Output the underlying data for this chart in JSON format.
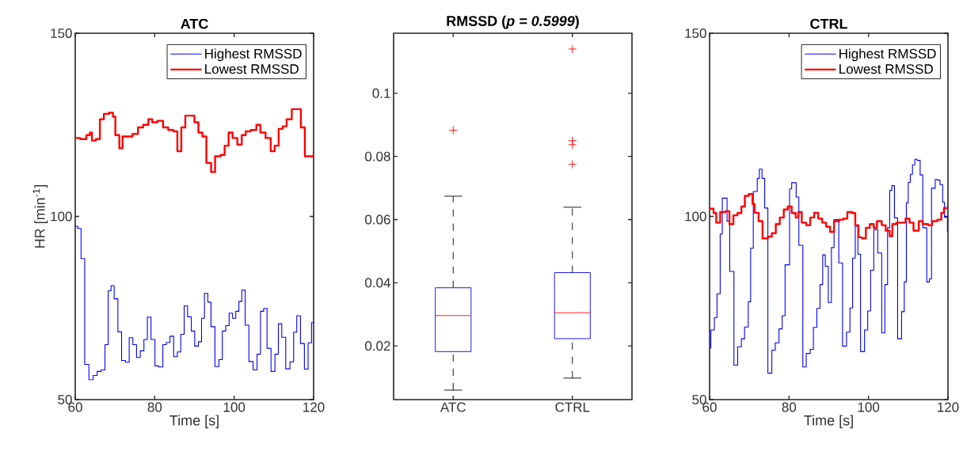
{
  "chart_data": [
    {
      "type": "step",
      "title": "ATC",
      "xlabel": "Time [s]",
      "ylabel": "HR [min$^{-1}$]",
      "xlim": [
        60,
        120
      ],
      "ylim": [
        50,
        150
      ],
      "xticks": [
        60,
        80,
        100,
        120
      ],
      "yticks": [
        50,
        100,
        150
      ],
      "legend": "top right",
      "series": [
        {
          "name": "Highest RMSSD",
          "color": "#0000ff",
          "x": [
            60,
            60.66,
            61.46,
            62.38,
            63.44,
            64.5,
            65.5,
            66.49,
            67.48,
            68.28,
            69.01,
            69.8,
            70.73,
            71.66,
            72.65,
            73.58,
            74.5,
            75.43,
            76.36,
            77.29,
            78.15,
            79.07,
            80.07,
            80.99,
            82.05,
            82.92,
            83.84,
            84.77,
            85.7,
            86.56,
            87.42,
            88.28,
            89.21,
            90.07,
            90.99,
            91.79,
            92.52,
            93.38,
            94.17,
            95.17,
            96.16,
            97.02,
            97.88,
            98.74,
            99.6,
            100.4,
            101.19,
            101.92,
            102.78,
            103.71,
            104.77,
            105.76,
            106.62,
            107.42,
            108.28,
            109.28,
            110.27,
            111.13,
            111.99,
            112.98,
            114.04,
            114.97,
            115.76,
            116.69,
            117.68,
            118.61,
            119.47,
            120
          ],
          "values": [
            97.3,
            96.7,
            88.5,
            59.6,
            55.4,
            56.6,
            57.7,
            58.1,
            65.0,
            79.7,
            81.1,
            77.5,
            68.5,
            60.7,
            60.2,
            66.9,
            65.0,
            61.5,
            63.3,
            66.4,
            72.5,
            66.4,
            59.2,
            58.9,
            65.0,
            65.6,
            67.3,
            61.7,
            63.0,
            67.8,
            75.6,
            72.6,
            68.7,
            64.6,
            65.8,
            72.2,
            79.0,
            76.6,
            69.9,
            59.0,
            60.9,
            68.7,
            70.2,
            73.6,
            72.2,
            74.1,
            76.8,
            79.9,
            70.3,
            60.4,
            58.1,
            62.4,
            74.1,
            74.9,
            64.0,
            57.7,
            62.4,
            70.7,
            67.0,
            58.4,
            60.3,
            68.4,
            72.9,
            65.3,
            58.3,
            65.5,
            71.0,
            71.0
          ]
        },
        {
          "name": "Lowest RMSSD",
          "color": "#ff0000",
          "x": [
            60,
            61.2,
            62.8,
            63.7,
            64.2,
            65.2,
            66.2,
            67.2,
            68.5,
            69.5,
            70.1,
            71.1,
            71.9,
            73.1,
            74.4,
            75.8,
            77.1,
            78.4,
            79.4,
            80.7,
            82.1,
            83.4,
            84.7,
            85.7,
            86.7,
            87.7,
            89.0,
            90.0,
            91.0,
            92.0,
            93.0,
            94.2,
            95.2,
            96.6,
            97.6,
            98.6,
            99.6,
            100.8,
            101.9,
            102.9,
            104.2,
            105.6,
            106.6,
            107.9,
            109.2,
            110.2,
            111.2,
            112.2,
            113.2,
            114.5,
            115.8,
            116.8,
            117.8,
            119.1,
            120
          ],
          "values": [
            121.4,
            121.1,
            122.2,
            122.9,
            120.7,
            121.1,
            126.5,
            128.0,
            128.3,
            127.2,
            122.2,
            118.6,
            121.8,
            121.8,
            122.5,
            124.3,
            125.0,
            126.5,
            125.7,
            126.1,
            124.3,
            123.6,
            123.2,
            117.8,
            124.3,
            127.5,
            127.5,
            125.7,
            122.9,
            121.8,
            114.6,
            112.1,
            116.4,
            116.8,
            119.3,
            122.9,
            121.4,
            119.6,
            122.2,
            123.2,
            123.6,
            125.0,
            122.9,
            121.4,
            117.8,
            119.3,
            123.9,
            124.6,
            126.5,
            129.3,
            129.3,
            124.3,
            116.4,
            116.4,
            117.5
          ]
        }
      ]
    },
    {
      "type": "box",
      "title": "RMSSD (*p = 0.5999*)",
      "categories": [
        "ATC",
        "CTRL"
      ],
      "ylim": [
        0.003,
        0.119
      ],
      "yticks": [
        0.02,
        0.04,
        0.06,
        0.08,
        0.1
      ],
      "boxes": [
        {
          "low": 0.006,
          "q1": 0.0182,
          "median": 0.0296,
          "q3": 0.0384,
          "high": 0.0674,
          "outliers": [
            0.0883
          ]
        },
        {
          "low": 0.0098,
          "q1": 0.0223,
          "median": 0.0305,
          "q3": 0.0432,
          "high": 0.0639,
          "outliers": [
            0.114,
            0.085,
            0.0837,
            0.0775
          ]
        }
      ]
    },
    {
      "type": "step",
      "title": "CTRL",
      "xlabel": "Time [s]",
      "xlim": [
        60,
        120
      ],
      "ylim": [
        50,
        150
      ],
      "xticks": [
        60,
        80,
        100,
        120
      ],
      "yticks": [
        50,
        100,
        150
      ],
      "legend": "top right",
      "series": [
        {
          "name": "Highest RMSSD",
          "color": "#0000ff",
          "x": [
            60,
            60.33,
            61.2,
            61.87,
            62.67,
            63.2,
            64.4,
            65.07,
            66.13,
            67.07,
            68,
            68.8,
            69.73,
            70.33,
            71,
            72,
            72.53,
            73.2,
            73.87,
            74.67,
            75.67,
            76.53,
            77.47,
            78.27,
            79,
            80.13,
            80.67,
            81.8,
            82.47,
            83.47,
            84.33,
            85.33,
            86.13,
            87,
            87.8,
            88.47,
            89.13,
            89.87,
            90.67,
            91.33,
            92.53,
            93.47,
            94.47,
            95.33,
            96,
            96.67,
            97.33,
            98,
            99,
            99.8,
            100.53,
            101.33,
            102.33,
            103.33,
            104.13,
            104.8,
            105.33,
            105.87,
            106.53,
            107.33,
            108.33,
            109,
            109.53,
            110,
            110.53,
            111.07,
            111.67,
            112.2,
            113,
            113.67,
            114.67,
            115.33,
            115.87,
            116.8,
            117.33,
            118,
            118.67,
            119.13,
            119.87,
            120
          ],
          "values": [
            64.1,
            69.0,
            72.4,
            78.9,
            95.2,
            105.0,
            98.7,
            85.0,
            59.4,
            64.4,
            66.6,
            69.8,
            76.7,
            91.3,
            106.8,
            110.4,
            112.9,
            110.4,
            102.3,
            57.2,
            63.5,
            65.5,
            69.3,
            72.9,
            86.8,
            107.5,
            109.2,
            105.3,
            92.1,
            58.9,
            62.6,
            63.7,
            69.7,
            74.9,
            81.4,
            89.5,
            86.4,
            76.5,
            91.5,
            99.1,
            87.3,
            64.6,
            68.4,
            75.0,
            88.6,
            97.3,
            89.7,
            63.1,
            69.0,
            74.2,
            85.3,
            96.4,
            90.0,
            68.2,
            81.4,
            96.9,
            107.1,
            108.4,
            99.6,
            66.6,
            74.0,
            82.1,
            103.7,
            109.3,
            111.5,
            114.1,
            115.6,
            115.3,
            111.3,
            96.9,
            82.1,
            83.0,
            107.7,
            110.1,
            109.9,
            108.7,
            103.9,
            99.8,
            96.0,
            96.0
          ]
        },
        {
          "name": "Lowest RMSSD",
          "color": "#ff0000",
          "x": [
            60,
            61,
            61.67,
            62.67,
            64,
            65,
            66,
            67,
            68,
            68.87,
            69.87,
            70.8,
            71.33,
            72.33,
            73.33,
            74.67,
            75.67,
            76.67,
            77.67,
            78.67,
            79.67,
            80.67,
            81.67,
            82.33,
            83.2,
            84.33,
            85.33,
            86.33,
            87.33,
            88.33,
            89.33,
            90.33,
            91.33,
            92.67,
            93.67,
            94.67,
            95.87,
            96.67,
            97.47,
            98.33,
            99.33,
            100.33,
            101.33,
            102.13,
            103.33,
            104.33,
            105.33,
            106,
            107,
            108.33,
            109.33,
            110.33,
            111.33,
            112.67,
            113.67,
            115,
            116,
            117.33,
            118.33,
            119,
            120
          ],
          "values": [
            102.1,
            100.9,
            98.3,
            101.2,
            101.4,
            97.9,
            100.3,
            100.9,
            102.7,
            105.6,
            106.1,
            103.4,
            101.0,
            98.7,
            94.0,
            94.5,
            95.4,
            97.9,
            99.7,
            101.9,
            102.7,
            100.9,
            99.7,
            101.2,
            98.3,
            97.6,
            99.7,
            101.0,
            99.4,
            98.3,
            97.2,
            95.8,
            98.7,
            99.1,
            99.4,
            101.2,
            100.9,
            97.6,
            94.3,
            94.0,
            96.9,
            97.9,
            96.9,
            98.7,
            97.6,
            96.1,
            94.6,
            97.9,
            98.3,
            98.3,
            99.4,
            98.3,
            96.1,
            98.7,
            97.9,
            97.6,
            98.7,
            99.1,
            100.9,
            102.3,
            103.2
          ]
        }
      ]
    }
  ]
}
